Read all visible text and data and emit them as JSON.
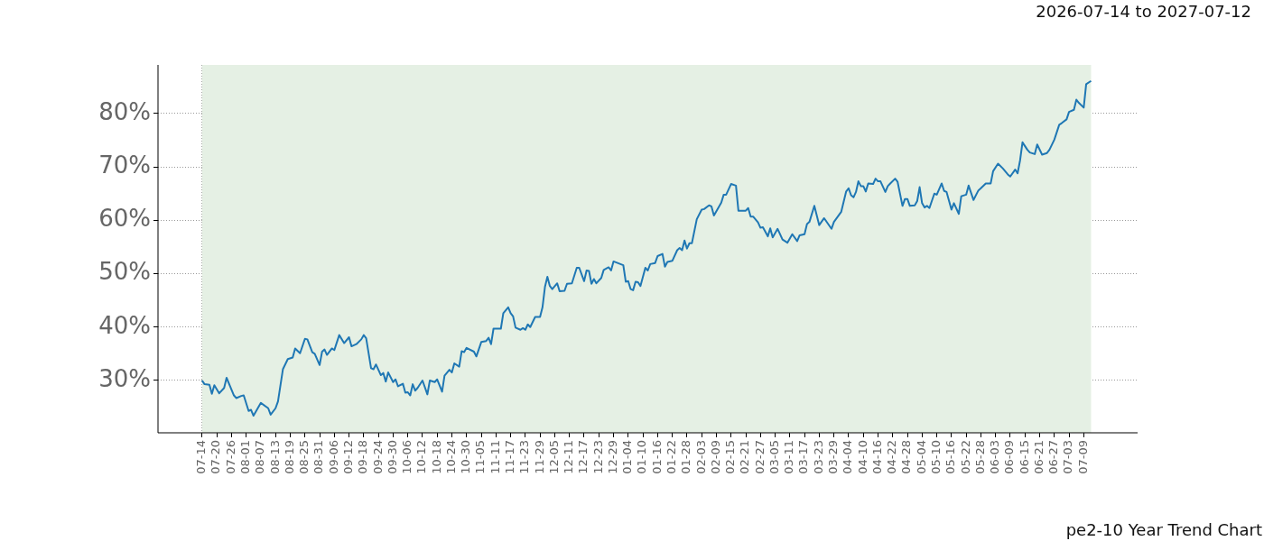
{
  "chart_data": {
    "type": "line",
    "title": "2026-07-14 to 2027-07-12",
    "annotations": [
      "pe2-10 Year Trend Chart"
    ],
    "series": [
      {
        "color": "#1f77b4",
        "x": [
          "2026-07-14",
          "2026-07-15",
          "2026-07-17",
          "2026-07-18",
          "2026-07-19",
          "2026-07-21",
          "2026-07-23",
          "2026-07-24",
          "2026-07-27",
          "2026-07-28",
          "2026-07-30",
          "2026-07-31",
          "2026-08-02",
          "2026-08-03",
          "2026-08-04",
          "2026-08-07",
          "2026-08-10",
          "2026-08-11",
          "2026-08-13",
          "2026-08-14",
          "2026-08-16",
          "2026-08-18",
          "2026-08-20",
          "2026-08-21",
          "2026-08-23",
          "2026-08-25",
          "2026-08-26",
          "2026-08-28",
          "2026-08-29",
          "2026-08-31",
          "2026-09-01",
          "2026-09-02",
          "2026-09-03",
          "2026-09-05",
          "2026-09-06",
          "2026-09-08",
          "2026-09-10",
          "2026-09-12",
          "2026-09-13",
          "2026-09-15",
          "2026-09-17",
          "2026-09-18",
          "2026-09-19",
          "2026-09-21",
          "2026-09-22",
          "2026-09-23",
          "2026-09-25",
          "2026-09-26",
          "2026-09-27",
          "2026-09-28",
          "2026-09-30",
          "2026-10-01",
          "2026-10-02",
          "2026-10-04",
          "2026-10-05",
          "2026-10-06",
          "2026-10-07",
          "2026-10-08",
          "2026-10-09",
          "2026-10-10",
          "2026-10-12",
          "2026-10-14",
          "2026-10-15",
          "2026-10-17",
          "2026-10-18",
          "2026-10-20",
          "2026-10-21",
          "2026-10-23",
          "2026-10-24",
          "2026-10-25",
          "2026-10-27",
          "2026-10-28",
          "2026-10-29",
          "2026-10-30",
          "2026-11-02",
          "2026-11-03",
          "2026-11-05",
          "2026-11-07",
          "2026-11-08",
          "2026-11-09",
          "2026-11-10",
          "2026-11-13",
          "2026-11-14",
          "2026-11-16",
          "2026-11-17",
          "2026-11-18",
          "2026-11-19",
          "2026-11-21",
          "2026-11-22",
          "2026-11-23",
          "2026-11-24",
          "2026-11-25",
          "2026-11-27",
          "2026-11-29",
          "2026-11-30",
          "2026-12-01",
          "2026-12-02",
          "2026-12-03",
          "2026-12-04",
          "2026-12-06",
          "2026-12-07",
          "2026-12-09",
          "2026-12-10",
          "2026-12-12",
          "2026-12-14",
          "2026-12-15",
          "2026-12-17",
          "2026-12-18",
          "2026-12-19",
          "2026-12-20",
          "2026-12-21",
          "2026-12-22",
          "2026-12-24",
          "2026-12-25",
          "2026-12-27",
          "2026-12-28",
          "2026-12-29",
          "2027-01-02",
          "2027-01-03",
          "2027-01-04",
          "2027-01-05",
          "2027-01-06",
          "2027-01-07",
          "2027-01-08",
          "2027-01-09",
          "2027-01-11",
          "2027-01-12",
          "2027-01-13",
          "2027-01-15",
          "2027-01-16",
          "2027-01-18",
          "2027-01-19",
          "2027-01-20",
          "2027-01-22",
          "2027-01-24",
          "2027-01-25",
          "2027-01-26",
          "2027-01-27",
          "2027-01-28",
          "2027-01-29",
          "2027-01-30",
          "2027-02-01",
          "2027-02-03",
          "2027-02-04",
          "2027-02-06",
          "2027-02-07",
          "2027-02-08",
          "2027-02-11",
          "2027-02-12",
          "2027-02-13",
          "2027-02-15",
          "2027-02-17",
          "2027-02-18",
          "2027-02-21",
          "2027-02-22",
          "2027-02-23",
          "2027-02-24",
          "2027-02-26",
          "2027-02-27",
          "2027-02-28",
          "2027-03-02",
          "2027-03-03",
          "2027-03-04",
          "2027-03-06",
          "2027-03-08",
          "2027-03-10",
          "2027-03-12",
          "2027-03-14",
          "2027-03-15",
          "2027-03-17",
          "2027-03-18",
          "2027-03-19",
          "2027-03-21",
          "2027-03-23",
          "2027-03-25",
          "2027-03-28",
          "2027-03-29",
          "2027-04-01",
          "2027-04-03",
          "2027-04-04",
          "2027-04-05",
          "2027-04-06",
          "2027-04-07",
          "2027-04-08",
          "2027-04-09",
          "2027-04-10",
          "2027-04-11",
          "2027-04-12",
          "2027-04-14",
          "2027-04-15",
          "2027-04-16",
          "2027-04-17",
          "2027-04-19",
          "2027-04-20",
          "2027-04-21",
          "2027-04-23",
          "2027-04-24",
          "2027-04-26",
          "2027-04-27",
          "2027-04-28",
          "2027-04-29",
          "2027-05-01",
          "2027-05-02",
          "2027-05-03",
          "2027-05-04",
          "2027-05-05",
          "2027-05-06",
          "2027-05-07",
          "2027-05-09",
          "2027-05-10",
          "2027-05-12",
          "2027-05-13",
          "2027-05-14",
          "2027-05-16",
          "2027-05-17",
          "2027-05-19",
          "2027-05-20",
          "2027-05-22",
          "2027-05-23",
          "2027-05-25",
          "2027-05-27",
          "2027-05-28",
          "2027-05-30",
          "2027-06-01",
          "2027-06-02",
          "2027-06-04",
          "2027-06-06",
          "2027-06-08",
          "2027-06-09",
          "2027-06-11",
          "2027-06-12",
          "2027-06-13",
          "2027-06-14",
          "2027-06-16",
          "2027-06-17",
          "2027-06-19",
          "2027-06-20",
          "2027-06-22",
          "2027-06-24",
          "2027-06-25",
          "2027-06-27",
          "2027-06-29",
          "2027-06-30",
          "2027-07-02",
          "2027-07-03",
          "2027-07-05",
          "2027-07-06",
          "2027-07-07",
          "2027-07-09",
          "2027-07-10",
          "2027-07-12"
        ],
        "values": [
          30.0,
          29.3,
          29.2,
          27.5,
          29.1,
          27.6,
          28.6,
          30.5,
          27.2,
          26.7,
          27.1,
          27.2,
          24.3,
          24.5,
          23.4,
          25.8,
          24.8,
          23.6,
          24.8,
          26.1,
          32.1,
          34.0,
          34.3,
          36.0,
          35.1,
          37.8,
          37.7,
          35.3,
          35.0,
          32.9,
          35.4,
          35.8,
          34.8,
          36.0,
          35.7,
          38.5,
          37.0,
          38.1,
          36.4,
          36.8,
          37.7,
          38.5,
          37.9,
          32.3,
          32.1,
          33.0,
          31.0,
          31.4,
          29.8,
          31.5,
          29.7,
          30.2,
          28.9,
          29.4,
          27.7,
          27.8,
          27.2,
          29.3,
          28.1,
          28.6,
          30.0,
          27.4,
          30.0,
          29.7,
          30.2,
          27.9,
          30.9,
          32.0,
          31.5,
          33.2,
          32.6,
          35.5,
          35.3,
          36.1,
          35.4,
          34.5,
          37.2,
          37.4,
          38.0,
          36.8,
          39.7,
          39.7,
          42.6,
          43.7,
          42.6,
          42.0,
          39.9,
          39.5,
          39.8,
          39.5,
          40.5,
          40.0,
          41.9,
          41.9,
          43.7,
          47.5,
          49.4,
          47.7,
          47.1,
          48.2,
          46.7,
          46.8,
          48.1,
          48.2,
          51.1,
          51.1,
          48.6,
          50.6,
          50.5,
          48.1,
          49.0,
          48.2,
          49.2,
          50.7,
          51.2,
          50.6,
          52.3,
          51.6,
          48.5,
          48.6,
          47.1,
          46.9,
          48.5,
          48.4,
          47.7,
          51.1,
          50.6,
          51.8,
          52.0,
          53.3,
          53.7,
          51.3,
          52.2,
          52.4,
          54.4,
          54.8,
          54.4,
          56.2,
          54.7,
          55.7,
          55.7,
          60.2,
          62.0,
          62.1,
          62.8,
          62.6,
          60.9,
          63.3,
          64.8,
          64.8,
          66.8,
          66.5,
          61.8,
          61.8,
          62.3,
          60.7,
          60.7,
          59.6,
          58.6,
          58.7,
          57.0,
          58.5,
          56.8,
          58.4,
          56.4,
          55.8,
          57.4,
          56.1,
          57.2,
          57.4,
          59.3,
          59.7,
          62.7,
          59.1,
          60.4,
          58.4,
          59.7,
          61.6,
          65.4,
          66.0,
          64.7,
          64.3,
          65.3,
          67.3,
          66.4,
          66.4,
          65.4,
          66.9,
          66.8,
          67.8,
          67.3,
          67.3,
          65.3,
          66.4,
          66.9,
          67.8,
          67.2,
          62.7,
          64.0,
          64.0,
          62.7,
          62.8,
          63.6,
          66.2,
          63.2,
          62.4,
          62.7,
          62.3,
          65.0,
          64.8,
          66.9,
          65.5,
          65.3,
          62.0,
          63.2,
          61.2,
          64.5,
          64.8,
          66.5,
          63.8,
          65.6,
          66.0,
          66.9,
          66.9,
          69.2,
          70.6,
          69.7,
          68.6,
          68.2,
          69.5,
          68.8,
          71.2,
          74.6,
          73.2,
          72.7,
          72.4,
          74.2,
          72.3,
          72.6,
          73.2,
          75.1,
          77.9,
          78.2,
          78.9,
          80.3,
          80.7,
          82.6,
          82.0,
          81.1,
          85.5,
          86.1
        ]
      }
    ],
    "xlim": [
      "2026-06-26",
      "2027-07-31"
    ],
    "xticks": [
      {
        "value": "2026-07-14",
        "label": "07-14"
      },
      {
        "value": "2026-07-20",
        "label": "07-20"
      },
      {
        "value": "2026-07-26",
        "label": "07-26"
      },
      {
        "value": "2026-08-01",
        "label": "08-01"
      },
      {
        "value": "2026-08-07",
        "label": "08-07"
      },
      {
        "value": "2026-08-13",
        "label": "08-13"
      },
      {
        "value": "2026-08-19",
        "label": "08-19"
      },
      {
        "value": "2026-08-25",
        "label": "08-25"
      },
      {
        "value": "2026-08-31",
        "label": "08-31"
      },
      {
        "value": "2026-09-06",
        "label": "09-06"
      },
      {
        "value": "2026-09-12",
        "label": "09-12"
      },
      {
        "value": "2026-09-18",
        "label": "09-18"
      },
      {
        "value": "2026-09-24",
        "label": "09-24"
      },
      {
        "value": "2026-09-30",
        "label": "09-30"
      },
      {
        "value": "2026-10-06",
        "label": "10-06"
      },
      {
        "value": "2026-10-12",
        "label": "10-12"
      },
      {
        "value": "2026-10-18",
        "label": "10-18"
      },
      {
        "value": "2026-10-24",
        "label": "10-24"
      },
      {
        "value": "2026-10-30",
        "label": "10-30"
      },
      {
        "value": "2026-11-05",
        "label": "11-05"
      },
      {
        "value": "2026-11-11",
        "label": "11-11"
      },
      {
        "value": "2026-11-17",
        "label": "11-17"
      },
      {
        "value": "2026-11-23",
        "label": "11-23"
      },
      {
        "value": "2026-11-29",
        "label": "11-29"
      },
      {
        "value": "2026-12-05",
        "label": "12-05"
      },
      {
        "value": "2026-12-11",
        "label": "12-11"
      },
      {
        "value": "2026-12-17",
        "label": "12-17"
      },
      {
        "value": "2026-12-23",
        "label": "12-23"
      },
      {
        "value": "2026-12-29",
        "label": "12-29"
      },
      {
        "value": "2027-01-04",
        "label": "01-04"
      },
      {
        "value": "2027-01-10",
        "label": "01-10"
      },
      {
        "value": "2027-01-16",
        "label": "01-16"
      },
      {
        "value": "2027-01-22",
        "label": "01-22"
      },
      {
        "value": "2027-01-28",
        "label": "01-28"
      },
      {
        "value": "2027-02-03",
        "label": "02-03"
      },
      {
        "value": "2027-02-09",
        "label": "02-09"
      },
      {
        "value": "2027-02-15",
        "label": "02-15"
      },
      {
        "value": "2027-02-21",
        "label": "02-21"
      },
      {
        "value": "2027-02-27",
        "label": "02-27"
      },
      {
        "value": "2027-03-05",
        "label": "03-05"
      },
      {
        "value": "2027-03-11",
        "label": "03-11"
      },
      {
        "value": "2027-03-17",
        "label": "03-17"
      },
      {
        "value": "2027-03-23",
        "label": "03-23"
      },
      {
        "value": "2027-03-29",
        "label": "03-29"
      },
      {
        "value": "2027-04-04",
        "label": "04-04"
      },
      {
        "value": "2027-04-10",
        "label": "04-10"
      },
      {
        "value": "2027-04-16",
        "label": "04-16"
      },
      {
        "value": "2027-04-22",
        "label": "04-22"
      },
      {
        "value": "2027-04-28",
        "label": "04-28"
      },
      {
        "value": "2027-05-04",
        "label": "05-04"
      },
      {
        "value": "2027-05-10",
        "label": "05-10"
      },
      {
        "value": "2027-05-16",
        "label": "05-16"
      },
      {
        "value": "2027-05-22",
        "label": "05-22"
      },
      {
        "value": "2027-05-28",
        "label": "05-28"
      },
      {
        "value": "2027-06-03",
        "label": "06-03"
      },
      {
        "value": "2027-06-09",
        "label": "06-09"
      },
      {
        "value": "2027-06-15",
        "label": "06-15"
      },
      {
        "value": "2027-06-21",
        "label": "06-21"
      },
      {
        "value": "2027-06-27",
        "label": "06-27"
      },
      {
        "value": "2027-07-03",
        "label": "07-03"
      },
      {
        "value": "2027-07-09",
        "label": "07-09"
      }
    ],
    "ylim": [
      20.2,
      89.1
    ],
    "yticks": [
      {
        "value": 30,
        "label": "30%"
      },
      {
        "value": 40,
        "label": "40%"
      },
      {
        "value": 50,
        "label": "50%"
      },
      {
        "value": 60,
        "label": "60%"
      },
      {
        "value": 70,
        "label": "70%"
      },
      {
        "value": 80,
        "label": "80%"
      }
    ],
    "bands": [
      {
        "axis": "x",
        "from": "2026-07-14",
        "to": "2027-07-12",
        "color": "#e5f0e4"
      }
    ],
    "grid": true,
    "legend": false,
    "marker": "none",
    "line_style": "solid"
  }
}
